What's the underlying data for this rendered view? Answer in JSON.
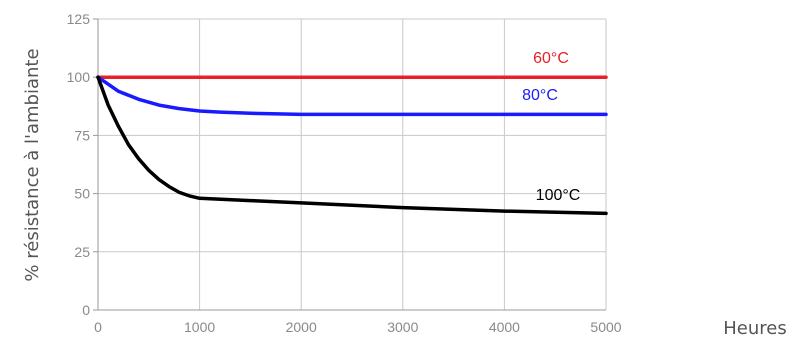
{
  "chart_data": {
    "type": "line",
    "title": "",
    "xlabel": "Heures",
    "ylabel": "% résistance à l'ambiante",
    "xlim": [
      0,
      5000
    ],
    "ylim": [
      0,
      125
    ],
    "x_ticks": [
      0,
      1000,
      2000,
      3000,
      4000,
      5000
    ],
    "y_ticks": [
      0,
      25,
      50,
      75,
      100,
      125
    ],
    "x_tick_labels": [
      "0",
      "1000",
      "2000",
      "3000",
      "4000",
      "5000"
    ],
    "y_tick_labels": [
      "0",
      "25",
      "50",
      "75",
      "100",
      "125"
    ],
    "grid": true,
    "legend": "none",
    "series": [
      {
        "name": "60°C",
        "color": "#e8202a",
        "x": [
          0,
          5000
        ],
        "y": [
          100,
          100
        ]
      },
      {
        "name": "80°C",
        "color": "#1a1aff",
        "x": [
          0,
          100,
          200,
          400,
          600,
          800,
          1000,
          1200,
          1500,
          2000,
          3000,
          4000,
          5000
        ],
        "y": [
          100,
          97,
          94,
          90.5,
          88,
          86.5,
          85.5,
          85,
          84.5,
          84,
          84,
          84,
          84
        ]
      },
      {
        "name": "100°C",
        "color": "#000000",
        "x": [
          0,
          100,
          200,
          300,
          400,
          500,
          600,
          700,
          800,
          900,
          1000,
          1500,
          2000,
          3000,
          4000,
          5000
        ],
        "y": [
          100,
          88,
          79,
          71,
          65,
          60,
          56,
          53,
          50.5,
          49,
          48,
          47,
          46,
          44,
          42.5,
          41.5
        ]
      }
    ]
  }
}
